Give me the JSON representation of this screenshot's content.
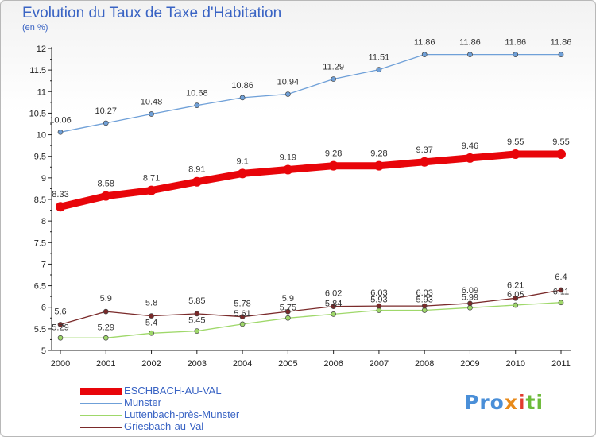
{
  "title": "Evolution du Taux de Taxe d'Habitation",
  "subtitle": "(en %)",
  "logo": {
    "text": "Proxiti",
    "parts": [
      "Pro",
      "x",
      "i",
      "ti"
    ]
  },
  "chart_data": {
    "type": "line",
    "x": [
      "2000",
      "2001",
      "2002",
      "2003",
      "2004",
      "2005",
      "2006",
      "2007",
      "2008",
      "2009",
      "2010",
      "2011"
    ],
    "ylim": [
      5,
      12
    ],
    "yticks": [
      "5",
      "5.5",
      "6",
      "6.5",
      "7",
      "7.5",
      "8",
      "8.5",
      "9",
      "9.5",
      "10",
      "10.5",
      "11",
      "11.5",
      "12"
    ],
    "grid": false,
    "legend_position": "bottom-left",
    "series": [
      {
        "name": "ESCHBACH-AU-VAL",
        "color": "#e8050a",
        "emphasis": true,
        "values": [
          8.33,
          8.58,
          8.71,
          8.91,
          9.1,
          9.19,
          9.28,
          9.28,
          9.37,
          9.46,
          9.55,
          9.55
        ],
        "labels": [
          "8.33",
          "8.58",
          "8.71",
          "8.91",
          "9.1",
          "9.19",
          "9.28",
          "9.28",
          "9.37",
          "9.46",
          "9.55",
          "9.55"
        ]
      },
      {
        "name": "Munster",
        "color": "#6fa0d8",
        "emphasis": false,
        "values": [
          10.06,
          10.27,
          10.48,
          10.68,
          10.86,
          10.94,
          11.29,
          11.51,
          11.86,
          11.86,
          11.86,
          11.86
        ],
        "labels": [
          "10.06",
          "10.27",
          "10.48",
          "10.68",
          "10.86",
          "10.94",
          "11.29",
          "11.51",
          "11.86",
          "11.86",
          "11.86",
          "11.86"
        ]
      },
      {
        "name": "Luttenbach-près-Munster",
        "color": "#9fd86a",
        "emphasis": false,
        "values": [
          5.29,
          5.29,
          5.4,
          5.45,
          5.61,
          5.75,
          5.84,
          5.93,
          5.93,
          5.99,
          6.05,
          6.11
        ],
        "labels": [
          "5.29",
          "5.29",
          "5.4",
          "5.45",
          "5.61",
          "5.75",
          "5.84",
          "5.93",
          "5.93",
          "5.99",
          "6.05",
          "6.11"
        ]
      },
      {
        "name": "Griesbach-au-Val",
        "color": "#7a2a2a",
        "emphasis": false,
        "values": [
          5.6,
          5.9,
          5.8,
          5.85,
          5.78,
          5.9,
          6.02,
          6.03,
          6.03,
          6.09,
          6.21,
          6.4
        ],
        "labels": [
          "5.6",
          "5.9",
          "5.8",
          "5.85",
          "5.78",
          "5.9",
          "6.02",
          "6.03",
          "6.03",
          "6.09",
          "6.21",
          "6.4"
        ]
      }
    ]
  }
}
